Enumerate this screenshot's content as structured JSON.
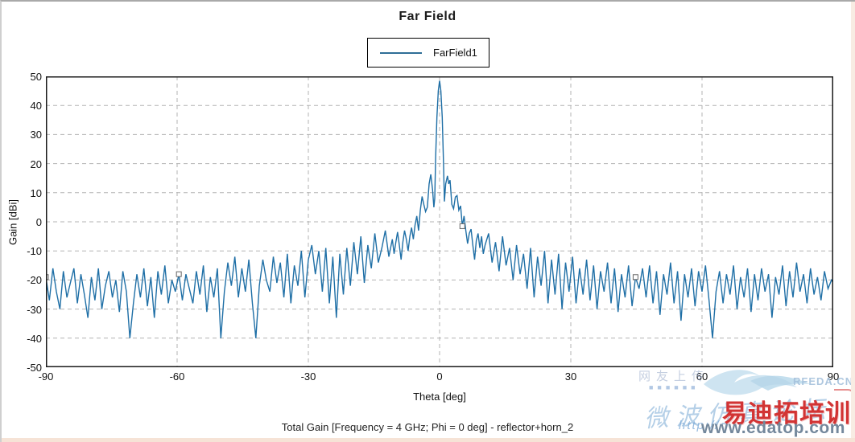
{
  "chart_data": {
    "type": "line",
    "title": "Far Field",
    "footnote": "Total Gain [Frequency = 4 GHz; Phi = 0 deg] - reflector+horn_2",
    "xlabel": "Theta [deg]",
    "ylabel": "Gain [dBi]",
    "xlim": [
      -90,
      90
    ],
    "ylim": [
      -50,
      50
    ],
    "x_ticks": [
      -90,
      -60,
      -30,
      0,
      30,
      60,
      90
    ],
    "y_ticks": [
      -50,
      -40,
      -30,
      -20,
      -10,
      0,
      10,
      20,
      30,
      40,
      50
    ],
    "grid": true,
    "grid_style": "dashed",
    "legend_position": "top-center",
    "series": [
      {
        "name": "FarField1",
        "color": "#1f6fa6",
        "peak_gain_dbi": 48.5,
        "peak_theta_deg": 0,
        "first_sidelobe_dbi": 16.3,
        "segments": [
          {
            "start": -90,
            "step": 0.8,
            "values": [
              -19,
              -27,
              -16,
              -24,
              -30,
              -17,
              -26,
              -21,
              -16,
              -28,
              -18,
              -25,
              -33,
              -19,
              -27,
              -16,
              -30,
              -22,
              -17,
              -26,
              -20,
              -31,
              -17,
              -24,
              -40,
              -28,
              -18,
              -26,
              -16,
              -29,
              -19,
              -33,
              -17,
              -25,
              -15,
              -28,
              -20,
              -24,
              -18,
              -27,
              -18,
              -23,
              -28,
              -17,
              -25,
              -15,
              -31,
              -19,
              -26,
              -16,
              -40,
              -24,
              -14,
              -22,
              -12,
              -26,
              -16,
              -24,
              -13,
              -28,
              -40,
              -22,
              -13,
              -20,
              -24,
              -12,
              -21,
              -14,
              -26,
              -11,
              -28,
              -15,
              -22,
              -10,
              -26,
              -13,
              -8,
              -18,
              -10,
              -24,
              -9,
              -28,
              -12,
              -33,
              -11,
              -25,
              -9,
              -22,
              -7,
              -18,
              -5,
              -21,
              -8,
              -16,
              -4,
              -14,
              -9,
              -3,
              -12,
              -6
            ]
          },
          {
            "points": [
              [
                -10.4,
                -11
              ],
              [
                -10,
                -7
              ],
              [
                -9.6,
                -3.5
              ],
              [
                -9.2,
                -8
              ],
              [
                -8.8,
                -13
              ],
              [
                -8.4,
                -7
              ],
              [
                -8,
                -3
              ],
              [
                -7.6,
                -6
              ],
              [
                -7.2,
                -10
              ],
              [
                -6.8,
                -5
              ],
              [
                -6.4,
                -2
              ],
              [
                -6,
                -6
              ],
              [
                -5.6,
                -1
              ],
              [
                -5.2,
                2
              ],
              [
                -4.8,
                -3
              ],
              [
                -4.4,
                4
              ],
              [
                -4,
                8.7
              ],
              [
                -3.6,
                6
              ],
              [
                -3.2,
                3.5
              ],
              [
                -2.8,
                5
              ],
              [
                -2.4,
                13
              ],
              [
                -2,
                16.3
              ],
              [
                -1.6,
                11
              ],
              [
                -1.3,
                5
              ],
              [
                -1.1,
                8
              ],
              [
                -0.9,
                22
              ],
              [
                -0.6,
                36
              ],
              [
                -0.3,
                45
              ],
              [
                0,
                48.5
              ],
              [
                0.3,
                45
              ],
              [
                0.6,
                36
              ],
              [
                0.9,
                20
              ],
              [
                1.1,
                7
              ],
              [
                1.4,
                13
              ],
              [
                1.8,
                15.8
              ],
              [
                2.1,
                13
              ],
              [
                2.4,
                14.3
              ],
              [
                2.8,
                6
              ],
              [
                3.2,
                4.5
              ],
              [
                3.6,
                8.5
              ],
              [
                4,
                9
              ],
              [
                4.4,
                4
              ],
              [
                4.8,
                5.5
              ],
              [
                5.2,
                -1.5
              ],
              [
                5.6,
                2
              ],
              [
                6,
                -3
              ],
              [
                6.4,
                -7.5
              ],
              [
                6.8,
                -4
              ],
              [
                7.2,
                -2.5
              ],
              [
                7.6,
                -8
              ],
              [
                8,
                -13
              ],
              [
                8.4,
                -6.5
              ],
              [
                8.8,
                -4
              ],
              [
                9.2,
                -9
              ],
              [
                9.6,
                -5
              ],
              [
                10,
                -11
              ],
              [
                10.4,
                -8
              ]
            ]
          },
          {
            "start": 11.2,
            "step": 0.8,
            "values": [
              -4,
              -14,
              -7,
              -17,
              -5,
              -15,
              -9,
              -20,
              -8,
              -18,
              -11,
              -23,
              -9,
              -26,
              -12,
              -22,
              -10,
              -28,
              -13,
              -25,
              -11,
              -30,
              -14,
              -24,
              -12,
              -28,
              -16,
              -25,
              -13,
              -27,
              -15,
              -30,
              -17,
              -24,
              -14,
              -28,
              -16,
              -31,
              -18,
              -26,
              -15,
              -29,
              -19,
              -23,
              -16,
              -26,
              -15,
              -28,
              -17,
              -32,
              -18,
              -25,
              -14,
              -28,
              -17,
              -34,
              -18,
              -26,
              -16,
              -29,
              -17,
              -24,
              -15,
              -27,
              -40,
              -24,
              -17,
              -28,
              -18,
              -25,
              -15,
              -30,
              -19,
              -26,
              -16,
              -31,
              -18,
              -27,
              -16,
              -24,
              -18,
              -33,
              -19,
              -25,
              -15,
              -29,
              -17,
              -26,
              -14,
              -24,
              -18,
              -28,
              -16,
              -25,
              -19,
              -27,
              -17,
              -23,
              -20
            ]
          },
          {
            "points": [
              [
                90,
                -21
              ]
            ]
          }
        ],
        "markers": [
          [
            -90,
            -19
          ],
          [
            -59.6,
            -18
          ],
          [
            5.2,
            -1.5
          ],
          [
            44.8,
            -19
          ]
        ]
      }
    ]
  },
  "watermark": {
    "uploader_text": "网友上传",
    "squares": "■■■■■■",
    "site_small": "RFEDA.CN",
    "forum_script": "微波仿真论坛",
    "url_script": "http://",
    "brand_cn": "易迪拓培训",
    "brand_url": "www.edatop.com"
  },
  "colors": {
    "trace": "#1f6fa6",
    "grid": "#b3b3b3",
    "frame": "#1a1a1a",
    "marker_fill": "#ffffff",
    "marker_stroke": "#666666",
    "brand_red": "#d23434",
    "brand_slate": "#74889c"
  }
}
